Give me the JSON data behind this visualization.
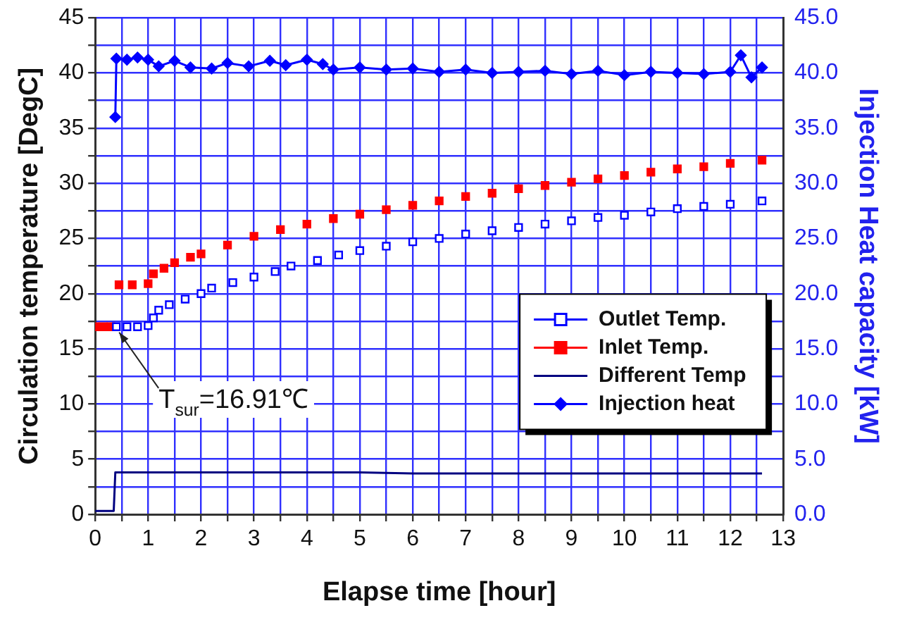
{
  "chart_data": {
    "type": "line",
    "xlabel": "Elapse time [hour]",
    "ylabel": "Circulation temperature [DegC]",
    "y2label": "Injection Heat capacity [kW]",
    "xlim": [
      0,
      13
    ],
    "xticks": [
      0,
      {
        "value": 0.5,
        "label": null
      },
      1,
      {
        "value": 1.5,
        "label": null
      },
      2,
      {
        "value": 2.5,
        "label": null
      },
      3,
      {
        "value": 3.5,
        "label": null
      },
      4,
      {
        "value": 4.5,
        "label": null
      },
      5,
      {
        "value": 5.5,
        "label": null
      },
      6,
      {
        "value": 6.5,
        "label": null
      },
      7,
      {
        "value": 7.5,
        "label": null
      },
      8,
      {
        "value": 8.5,
        "label": null
      },
      9,
      {
        "value": 9.5,
        "label": null
      },
      10,
      {
        "value": 10.5,
        "label": null
      },
      11,
      {
        "value": 11.5,
        "label": null
      },
      12,
      {
        "value": 12.5,
        "label": null
      },
      13
    ],
    "ylim": [
      0,
      45
    ],
    "yticks": [
      0,
      {
        "value": 2.5,
        "label": null
      },
      5,
      {
        "value": 7.5,
        "label": null
      },
      10,
      {
        "value": 12.5,
        "label": null
      },
      15,
      {
        "value": 17.5,
        "label": null
      },
      20,
      {
        "value": 22.5,
        "label": null
      },
      25,
      {
        "value": 27.5,
        "label": null
      },
      30,
      {
        "value": 32.5,
        "label": null
      },
      35,
      {
        "value": 37.5,
        "label": null
      },
      40,
      {
        "value": 42.5,
        "label": null
      },
      45
    ],
    "y2lim": [
      0,
      45
    ],
    "y2ticks": [
      {
        "value": 0,
        "label": "0.0"
      },
      {
        "value": 5,
        "label": "5.0"
      },
      {
        "value": 10,
        "label": "10.0"
      },
      {
        "value": 15,
        "label": "15.0"
      },
      {
        "value": 20,
        "label": "20.0"
      },
      {
        "value": 25,
        "label": "25.0"
      },
      {
        "value": 30,
        "label": "30.0"
      },
      {
        "value": 35,
        "label": "35.0"
      },
      {
        "value": 40,
        "label": "40.0"
      },
      {
        "value": 45,
        "label": "45.0"
      }
    ],
    "grid": true,
    "legend": "right",
    "annotations": [
      {
        "text": "T$_{sur}$=16.91℃",
        "x": 0.4,
        "y": 17
      }
    ],
    "series": [
      {
        "name": "Outlet Temp.",
        "type": "scatter",
        "marker": "square",
        "color": "#0000ff",
        "x": [
          0.4,
          0.6,
          0.8,
          1.0,
          1.1,
          1.2,
          1.4,
          1.7,
          2.0,
          2.2,
          2.6,
          3.0,
          3.4,
          3.7,
          4.2,
          4.6,
          5.0,
          5.5,
          6.0,
          6.5,
          7.0,
          7.5,
          8.0,
          8.5,
          9.0,
          9.5,
          10.0,
          10.5,
          11.0,
          11.5,
          12.0,
          12.6
        ],
        "values": [
          17,
          17,
          17,
          17.1,
          17.8,
          18.5,
          19,
          19.5,
          20,
          20.5,
          21,
          21.5,
          22,
          22.5,
          23,
          23.5,
          23.9,
          24.3,
          24.7,
          25,
          25.4,
          25.7,
          26,
          26.3,
          26.6,
          26.9,
          27.1,
          27.4,
          27.7,
          27.9,
          28.1,
          28.4
        ]
      },
      {
        "name": "Inlet Temp.",
        "type": "scatter",
        "marker": "square",
        "color": "#ff0000",
        "x": [
          0,
          0.15,
          0.3,
          0.45,
          0.7,
          1.0,
          1.1,
          1.3,
          1.5,
          1.8,
          2.0,
          2.5,
          3.0,
          3.5,
          4.0,
          4.5,
          5.0,
          5.5,
          6.0,
          6.5,
          7.0,
          7.5,
          8.0,
          8.5,
          9.0,
          9.5,
          10.0,
          10.5,
          11.0,
          11.5,
          12.0,
          12.6
        ],
        "values": [
          17,
          17,
          17,
          20.8,
          20.8,
          20.9,
          21.8,
          22.3,
          22.8,
          23.3,
          23.6,
          24.4,
          25.2,
          25.8,
          26.3,
          26.8,
          27.2,
          27.6,
          28,
          28.4,
          28.8,
          29.1,
          29.5,
          29.8,
          30.1,
          30.4,
          30.7,
          31,
          31.3,
          31.5,
          31.8,
          32.1
        ]
      },
      {
        "name": "Different Temp",
        "type": "line",
        "marker": "none",
        "color": "#000080",
        "x": [
          0,
          0.35,
          0.38,
          0.5,
          1,
          2,
          3,
          4,
          5,
          6,
          7,
          8,
          9,
          10,
          11,
          12,
          12.6
        ],
        "values": [
          0.3,
          0.3,
          3.8,
          3.8,
          3.8,
          3.8,
          3.8,
          3.8,
          3.8,
          3.7,
          3.7,
          3.7,
          3.7,
          3.7,
          3.7,
          3.7,
          3.7
        ]
      },
      {
        "name": "Injection heat",
        "type": "line",
        "marker": "diamond",
        "axis": "y2",
        "color": "#0000ff",
        "x": [
          0.38,
          0.4,
          0.6,
          0.8,
          1.0,
          1.2,
          1.5,
          1.8,
          2.2,
          2.5,
          2.9,
          3.3,
          3.6,
          4.0,
          4.3,
          4.5,
          5.0,
          5.5,
          6.0,
          6.5,
          7.0,
          7.5,
          8.0,
          8.5,
          9.0,
          9.5,
          10.0,
          10.5,
          11.0,
          11.5,
          12.0,
          12.2,
          12.4,
          12.6
        ],
        "values": [
          36,
          41.3,
          41.2,
          41.4,
          41.2,
          40.6,
          41.1,
          40.5,
          40.4,
          40.9,
          40.6,
          41.1,
          40.7,
          41.2,
          40.8,
          40.3,
          40.5,
          40.3,
          40.4,
          40.1,
          40.3,
          40.0,
          40.1,
          40.2,
          39.9,
          40.2,
          39.8,
          40.1,
          40.0,
          39.9,
          40.1,
          41.6,
          39.6,
          40.5
        ]
      }
    ]
  }
}
